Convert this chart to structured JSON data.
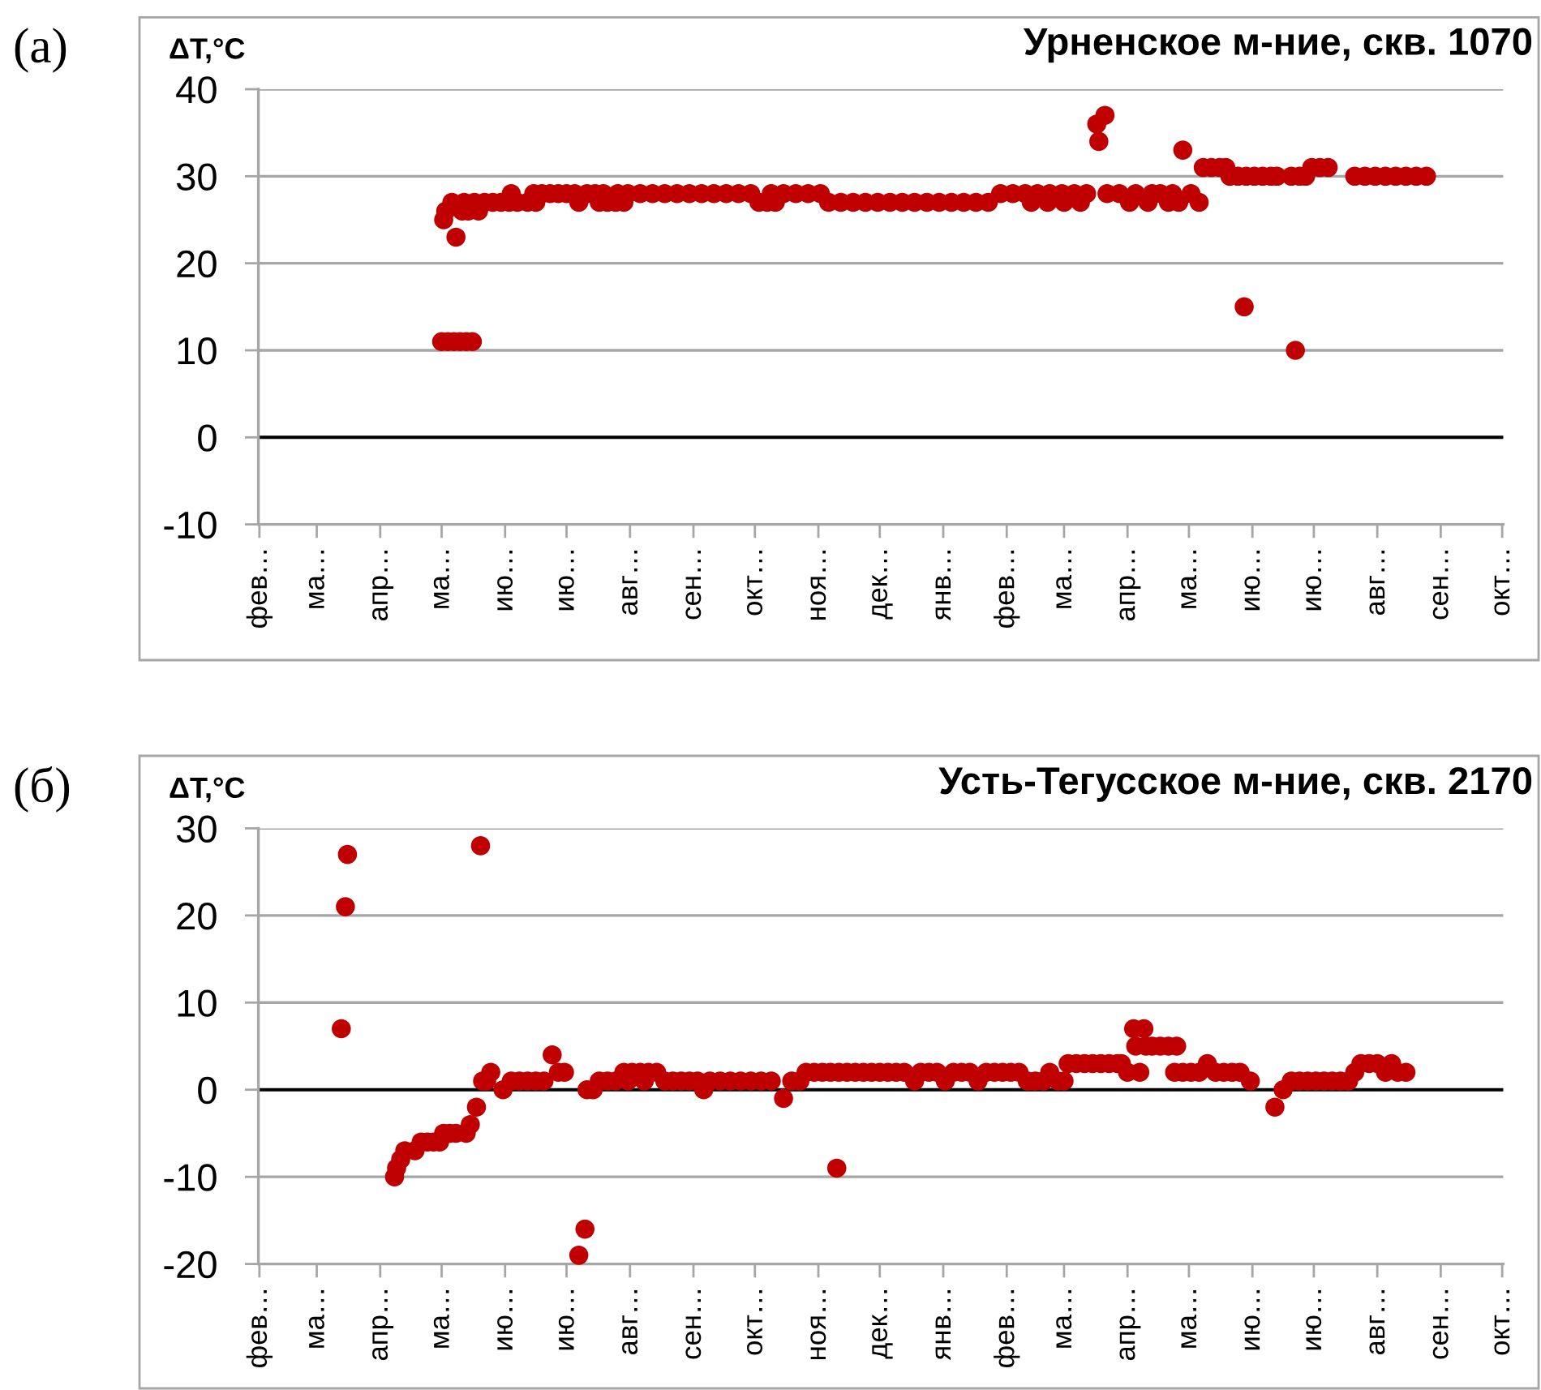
{
  "chart_data": [
    {
      "type": "scatter",
      "title": "Урненское м-ние, скв. 1070",
      "ylabel": "ΔT,°C",
      "annotations": [
        "(а)"
      ],
      "color": "#c00000",
      "marker": "circle",
      "grid": "y",
      "ref_lines": [
        {
          "axis": "y",
          "value": 0,
          "color": "#000000"
        }
      ],
      "ylim": [
        -10,
        40
      ],
      "yticks": [
        -10,
        0,
        10,
        20,
        30,
        40
      ],
      "categories": [
        "фев…",
        null,
        null,
        null,
        null,
        null,
        null,
        null,
        null,
        null,
        null,
        null,
        null,
        null,
        null,
        null,
        null,
        null,
        null,
        null,
        null,
        null,
        null,
        null,
        null,
        null,
        null,
        null,
        "ма…",
        null,
        null,
        null,
        null,
        null,
        null,
        null,
        null,
        null,
        null,
        null,
        null,
        null,
        null,
        null,
        null,
        null,
        null,
        null,
        null,
        null,
        null,
        null,
        null,
        null,
        null,
        null,
        null,
        null,
        null,
        "апр…",
        null,
        null,
        null,
        null,
        null,
        null,
        null,
        null,
        null,
        null,
        null,
        null,
        null,
        null,
        null,
        null,
        null,
        null,
        null,
        null,
        null,
        null,
        null,
        null,
        null,
        null,
        null,
        null,
        null,
        "ма…",
        null,
        null,
        null,
        null,
        null,
        null,
        null,
        null,
        null,
        null,
        null,
        null,
        null,
        null,
        null,
        null,
        null,
        null,
        null,
        null,
        null,
        null,
        null,
        null,
        null,
        null,
        null,
        null,
        null,
        null,
        "ию…",
        null,
        null,
        null,
        null,
        null,
        null,
        null,
        null,
        null,
        null,
        null,
        null,
        null,
        null,
        null,
        null,
        null,
        null,
        null,
        null,
        null,
        null,
        null,
        null,
        null,
        null,
        null,
        null,
        null,
        "ию…",
        null,
        null,
        null,
        null,
        null,
        null,
        null,
        null,
        null,
        null,
        null,
        null,
        null,
        null,
        null,
        null,
        null,
        null,
        null,
        null,
        null,
        null,
        null,
        null,
        null,
        null,
        null,
        null,
        null,
        null,
        "авг…",
        null,
        null,
        null,
        null,
        null,
        null,
        null,
        null,
        null,
        null,
        null,
        null,
        null,
        null,
        null,
        null,
        null,
        null,
        null,
        null,
        null,
        null,
        null,
        null,
        null,
        null,
        null,
        null,
        null,
        null,
        "сен…",
        null,
        null,
        null,
        null,
        null,
        null,
        null,
        null,
        null,
        null,
        null,
        null,
        null,
        null,
        null,
        null,
        null,
        null,
        null,
        null,
        null,
        null,
        null,
        null,
        null,
        null,
        null,
        null,
        null,
        "окт…",
        null,
        null,
        null,
        null,
        null,
        null,
        null,
        null,
        null,
        null,
        null,
        null,
        null,
        null,
        null,
        null,
        null,
        null,
        null,
        null,
        null,
        null,
        null,
        null,
        null,
        null,
        null,
        null,
        null,
        null,
        "ноя…",
        null,
        null,
        null,
        null,
        null,
        null,
        null,
        null,
        null,
        null,
        null,
        null,
        null,
        null,
        null,
        null,
        null,
        null,
        null,
        null,
        null,
        null,
        null,
        null,
        null,
        null,
        null,
        null,
        null,
        "дек…",
        null,
        null,
        null,
        null,
        null,
        null,
        null,
        null,
        null,
        null,
        null,
        null,
        null,
        null,
        null,
        null,
        null,
        null,
        null,
        null,
        null,
        null,
        null,
        null,
        null,
        null,
        null,
        null,
        null,
        null,
        "янв…",
        null,
        null,
        null,
        null,
        null,
        null,
        null,
        null,
        null,
        null,
        null,
        null,
        null,
        null,
        null,
        null,
        null,
        null,
        null,
        null,
        null,
        null,
        null,
        null,
        null,
        null,
        null,
        null,
        null,
        null,
        "фев…",
        null,
        null,
        null,
        null,
        null,
        null,
        null,
        null,
        null,
        null,
        null,
        null,
        null,
        null,
        null,
        null,
        null,
        null,
        null,
        null,
        null,
        null,
        null,
        null,
        null,
        null,
        null,
        "ма…",
        null,
        null,
        null,
        null,
        null,
        null,
        null,
        null,
        null,
        null,
        null,
        null,
        null,
        null,
        null,
        null,
        null,
        null,
        null,
        null,
        null,
        null,
        null,
        null,
        null,
        null,
        null,
        null,
        null,
        null,
        "апр…",
        null,
        null,
        null,
        null,
        null,
        null,
        null,
        null,
        null,
        null,
        null,
        null,
        null,
        null,
        null,
        null,
        null,
        null,
        null,
        null,
        null,
        null,
        null,
        null,
        null,
        null,
        null,
        null,
        null,
        "ма…",
        null,
        null,
        null,
        null,
        null,
        null,
        null,
        null,
        null,
        null,
        null,
        null,
        null,
        null,
        null,
        null,
        null,
        null,
        null,
        null,
        null,
        null,
        null,
        null,
        null,
        null,
        null,
        null,
        null,
        null,
        "ию…",
        null,
        null,
        null,
        null,
        null,
        null,
        null,
        null,
        null,
        null,
        null,
        null,
        null,
        null,
        null,
        null,
        null,
        null,
        null,
        null,
        null,
        null,
        null,
        null,
        null,
        null,
        null,
        null,
        null,
        "ию…",
        null,
        null,
        null,
        null,
        null,
        null,
        null,
        null,
        null,
        null,
        null,
        null,
        null,
        null,
        null,
        null,
        null,
        null,
        null,
        null,
        null,
        null,
        null,
        null,
        null,
        null,
        null,
        null,
        null,
        null,
        "авг…",
        null,
        null,
        null,
        null,
        null,
        null,
        null,
        null,
        null,
        null,
        null,
        null,
        null,
        null,
        null,
        null,
        null,
        null,
        null,
        null,
        null,
        null,
        null,
        null,
        null,
        null,
        null,
        null,
        null,
        null,
        "сен…",
        null,
        null,
        null,
        null,
        null,
        null,
        null,
        null,
        null,
        null,
        null,
        null,
        null,
        null,
        null,
        null,
        null,
        null,
        null,
        null,
        null,
        null,
        null,
        null,
        null,
        null,
        null,
        null,
        null,
        "окт…"
      ],
      "values": [
        null,
        null,
        null,
        null,
        null,
        null,
        null,
        null,
        null,
        null,
        null,
        null,
        null,
        null,
        null,
        null,
        null,
        null,
        null,
        null,
        null,
        null,
        null,
        null,
        null,
        null,
        null,
        null,
        null,
        null,
        null,
        null,
        null,
        null,
        null,
        null,
        null,
        null,
        null,
        null,
        null,
        null,
        null,
        null,
        null,
        null,
        null,
        null,
        null,
        null,
        null,
        null,
        null,
        null,
        null,
        null,
        null,
        null,
        null,
        null,
        null,
        null,
        null,
        null,
        null,
        null,
        null,
        null,
        null,
        null,
        null,
        null,
        null,
        null,
        null,
        null,
        null,
        null,
        null,
        null,
        null,
        null,
        null,
        null,
        null,
        null,
        null,
        null,
        null,
        11,
        25,
        26,
        11,
        null,
        27,
        11,
        23,
        null,
        11,
        26,
        27,
        11,
        26,
        null,
        11,
        27,
        null,
        26,
        null,
        null,
        27,
        null,
        null,
        null,
        27,
        null,
        null,
        null,
        27,
        null,
        null,
        null,
        27,
        28,
        null,
        null,
        27,
        null,
        null,
        null,
        null,
        27,
        null,
        null,
        28,
        27,
        null,
        null,
        28,
        null,
        null,
        null,
        28,
        null,
        null,
        null,
        28,
        null,
        null,
        null,
        28,
        null,
        null,
        null,
        28,
        null,
        27,
        null,
        null,
        null,
        28,
        null,
        null,
        null,
        28,
        null,
        27,
        null,
        28,
        null,
        27,
        null,
        null,
        null,
        27,
        28,
        null,
        null,
        27,
        null,
        28,
        null,
        null,
        null,
        null,
        null,
        28,
        null,
        null,
        null,
        null,
        null,
        28,
        null,
        null,
        null,
        null,
        null,
        28,
        null,
        null,
        null,
        null,
        null,
        28,
        null,
        null,
        null,
        null,
        null,
        28,
        null,
        null,
        null,
        null,
        null,
        28,
        null,
        null,
        null,
        null,
        null,
        28,
        null,
        null,
        null,
        null,
        null,
        28,
        null,
        null,
        null,
        null,
        null,
        28,
        null,
        null,
        null,
        null,
        null,
        28,
        null,
        null,
        null,
        27,
        null,
        null,
        null,
        27,
        null,
        28,
        null,
        27,
        null,
        null,
        null,
        28,
        null,
        null,
        null,
        null,
        null,
        28,
        null,
        null,
        null,
        null,
        null,
        28,
        null,
        null,
        null,
        null,
        null,
        28,
        null,
        null,
        null,
        27,
        null,
        null,
        null,
        null,
        null,
        27,
        null,
        null,
        null,
        null,
        null,
        27,
        null,
        null,
        null,
        null,
        null,
        27,
        null,
        null,
        null,
        null,
        null,
        27,
        null,
        null,
        null,
        null,
        null,
        27,
        null,
        null,
        null,
        null,
        null,
        27,
        null,
        null,
        null,
        null,
        null,
        27,
        null,
        null,
        null,
        null,
        null,
        27,
        null,
        null,
        null,
        null,
        null,
        27,
        null,
        null,
        null,
        null,
        null,
        27,
        null,
        null,
        null,
        null,
        null,
        27,
        null,
        null,
        null,
        null,
        null,
        27,
        null,
        null,
        null,
        null,
        null,
        27,
        null,
        null,
        null,
        null,
        null,
        28,
        null,
        null,
        null,
        null,
        null,
        28,
        null,
        null,
        null,
        null,
        null,
        28,
        null,
        null,
        27,
        null,
        null,
        28,
        null,
        null,
        null,
        null,
        27,
        28,
        null,
        null,
        null,
        null,
        null,
        28,
        27,
        null,
        null,
        null,
        null,
        28,
        null,
        null,
        27,
        null,
        null,
        28,
        null,
        null,
        null,
        null,
        36,
        34,
        null,
        null,
        37,
        28,
        null,
        null,
        null,
        null,
        null,
        28,
        null,
        null,
        null,
        null,
        27,
        null,
        null,
        28,
        null,
        null,
        null,
        null,
        null,
        27,
        null,
        28,
        null,
        null,
        null,
        28,
        null,
        null,
        null,
        27,
        null,
        28,
        null,
        null,
        27,
        null,
        33,
        null,
        null,
        null,
        28,
        null,
        null,
        null,
        27,
        null,
        31,
        null,
        null,
        null,
        31,
        null,
        null,
        null,
        31,
        null,
        null,
        31,
        null,
        30,
        null,
        null,
        null,
        30,
        null,
        null,
        15,
        30,
        null,
        null,
        null,
        30,
        null,
        null,
        null,
        30,
        null,
        null,
        null,
        30,
        null,
        null,
        30,
        null,
        null,
        null,
        null,
        null,
        null,
        30,
        null,
        10,
        null,
        30,
        null,
        null,
        30,
        null,
        null,
        31,
        null,
        null,
        null,
        31,
        null,
        null,
        null,
        31,
        null,
        null,
        null,
        null,
        null,
        null,
        null,
        null,
        null,
        null,
        null,
        null,
        30,
        null,
        null,
        null,
        null,
        30,
        null,
        null,
        null,
        null,
        30,
        null,
        null,
        null,
        null,
        30,
        null,
        null,
        null,
        null,
        30,
        null,
        null,
        null,
        null,
        30,
        null,
        null,
        null,
        null,
        30,
        null,
        null,
        null,
        null,
        30,
        null,
        null,
        null,
        null,
        null,
        null,
        null,
        null,
        null,
        null,
        null,
        null,
        null,
        null,
        null,
        null,
        null,
        null,
        null,
        null,
        null,
        null,
        null,
        null,
        null,
        null,
        null,
        null,
        null,
        null,
        null,
        null,
        null,
        null,
        null,
        null,
        null
      ]
    },
    {
      "type": "scatter",
      "title": "Усть-Тегусское м-ние, скв. 2170",
      "ylabel": "ΔT,°C",
      "annotations": [
        "(б)"
      ],
      "color": "#c00000",
      "marker": "circle",
      "grid": "y",
      "ref_lines": [
        {
          "axis": "y",
          "value": 0,
          "color": "#000000"
        }
      ],
      "ylim": [
        -20,
        30
      ],
      "yticks": [
        -20,
        -10,
        0,
        10,
        20,
        30
      ],
      "categories": [
        "фев…",
        null,
        null,
        null,
        null,
        null,
        null,
        null,
        null,
        null,
        null,
        null,
        null,
        null,
        null,
        null,
        null,
        null,
        null,
        null,
        null,
        null,
        null,
        null,
        null,
        null,
        null,
        null,
        "ма…",
        null,
        null,
        null,
        null,
        null,
        null,
        null,
        null,
        null,
        null,
        null,
        null,
        null,
        null,
        null,
        null,
        null,
        null,
        null,
        null,
        null,
        null,
        null,
        null,
        null,
        null,
        null,
        null,
        null,
        null,
        "апр…",
        null,
        null,
        null,
        null,
        null,
        null,
        null,
        null,
        null,
        null,
        null,
        null,
        null,
        null,
        null,
        null,
        null,
        null,
        null,
        null,
        null,
        null,
        null,
        null,
        null,
        null,
        null,
        null,
        null,
        "ма…",
        null,
        null,
        null,
        null,
        null,
        null,
        null,
        null,
        null,
        null,
        null,
        null,
        null,
        null,
        null,
        null,
        null,
        null,
        null,
        null,
        null,
        null,
        null,
        null,
        null,
        null,
        null,
        null,
        null,
        null,
        "ию…",
        null,
        null,
        null,
        null,
        null,
        null,
        null,
        null,
        null,
        null,
        null,
        null,
        null,
        null,
        null,
        null,
        null,
        null,
        null,
        null,
        null,
        null,
        null,
        null,
        null,
        null,
        null,
        null,
        null,
        "ию…",
        null,
        null,
        null,
        null,
        null,
        null,
        null,
        null,
        null,
        null,
        null,
        null,
        null,
        null,
        null,
        null,
        null,
        null,
        null,
        null,
        null,
        null,
        null,
        null,
        null,
        null,
        null,
        null,
        null,
        null,
        "авг…",
        null,
        null,
        null,
        null,
        null,
        null,
        null,
        null,
        null,
        null,
        null,
        null,
        null,
        null,
        null,
        null,
        null,
        null,
        null,
        null,
        null,
        null,
        null,
        null,
        null,
        null,
        null,
        null,
        null,
        null,
        "сен…",
        null,
        null,
        null,
        null,
        null,
        null,
        null,
        null,
        null,
        null,
        null,
        null,
        null,
        null,
        null,
        null,
        null,
        null,
        null,
        null,
        null,
        null,
        null,
        null,
        null,
        null,
        null,
        null,
        null,
        "окт…",
        null,
        null,
        null,
        null,
        null,
        null,
        null,
        null,
        null,
        null,
        null,
        null,
        null,
        null,
        null,
        null,
        null,
        null,
        null,
        null,
        null,
        null,
        null,
        null,
        null,
        null,
        null,
        null,
        null,
        null,
        "ноя…",
        null,
        null,
        null,
        null,
        null,
        null,
        null,
        null,
        null,
        null,
        null,
        null,
        null,
        null,
        null,
        null,
        null,
        null,
        null,
        null,
        null,
        null,
        null,
        null,
        null,
        null,
        null,
        null,
        null,
        "дек…",
        null,
        null,
        null,
        null,
        null,
        null,
        null,
        null,
        null,
        null,
        null,
        null,
        null,
        null,
        null,
        null,
        null,
        null,
        null,
        null,
        null,
        null,
        null,
        null,
        null,
        null,
        null,
        null,
        null,
        null,
        "янв…",
        null,
        null,
        null,
        null,
        null,
        null,
        null,
        null,
        null,
        null,
        null,
        null,
        null,
        null,
        null,
        null,
        null,
        null,
        null,
        null,
        null,
        null,
        null,
        null,
        null,
        null,
        null,
        null,
        null,
        null,
        "фев…",
        null,
        null,
        null,
        null,
        null,
        null,
        null,
        null,
        null,
        null,
        null,
        null,
        null,
        null,
        null,
        null,
        null,
        null,
        null,
        null,
        null,
        null,
        null,
        null,
        null,
        null,
        null,
        "ма…",
        null,
        null,
        null,
        null,
        null,
        null,
        null,
        null,
        null,
        null,
        null,
        null,
        null,
        null,
        null,
        null,
        null,
        null,
        null,
        null,
        null,
        null,
        null,
        null,
        null,
        null,
        null,
        null,
        null,
        null,
        "апр…",
        null,
        null,
        null,
        null,
        null,
        null,
        null,
        null,
        null,
        null,
        null,
        null,
        null,
        null,
        null,
        null,
        null,
        null,
        null,
        null,
        null,
        null,
        null,
        null,
        null,
        null,
        null,
        null,
        null,
        "ма…",
        null,
        null,
        null,
        null,
        null,
        null,
        null,
        null,
        null,
        null,
        null,
        null,
        null,
        null,
        null,
        null,
        null,
        null,
        null,
        null,
        null,
        null,
        null,
        null,
        null,
        null,
        null,
        null,
        null,
        null,
        "ию…",
        null,
        null,
        null,
        null,
        null,
        null,
        null,
        null,
        null,
        null,
        null,
        null,
        null,
        null,
        null,
        null,
        null,
        null,
        null,
        null,
        null,
        null,
        null,
        null,
        null,
        null,
        null,
        null,
        null,
        "ию…",
        null,
        null,
        null,
        null,
        null,
        null,
        null,
        null,
        null,
        null,
        null,
        null,
        null,
        null,
        null,
        null,
        null,
        null,
        null,
        null,
        null,
        null,
        null,
        null,
        null,
        null,
        null,
        null,
        null,
        null,
        "авг…",
        null,
        null,
        null,
        null,
        null,
        null,
        null,
        null,
        null,
        null,
        null,
        null,
        null,
        null,
        null,
        null,
        null,
        null,
        null,
        null,
        null,
        null,
        null,
        null,
        null,
        null,
        null,
        null,
        null,
        null,
        "сен…",
        null,
        null,
        null,
        null,
        null,
        null,
        null,
        null,
        null,
        null,
        null,
        null,
        null,
        null,
        null,
        null,
        null,
        null,
        null,
        null,
        null,
        null,
        null,
        null,
        null,
        null,
        null,
        null,
        null,
        "окт…"
      ],
      "values": [
        null,
        null,
        null,
        null,
        null,
        null,
        null,
        null,
        null,
        null,
        null,
        null,
        null,
        null,
        null,
        null,
        null,
        null,
        null,
        null,
        null,
        null,
        null,
        null,
        null,
        null,
        null,
        null,
        null,
        null,
        null,
        null,
        null,
        null,
        null,
        null,
        null,
        null,
        null,
        null,
        7,
        null,
        21,
        27,
        null,
        null,
        null,
        null,
        null,
        null,
        null,
        null,
        null,
        null,
        null,
        null,
        null,
        null,
        null,
        null,
        null,
        null,
        null,
        null,
        null,
        null,
        -10,
        -9,
        null,
        -8,
        null,
        -7,
        null,
        null,
        null,
        null,
        -7,
        null,
        null,
        -6,
        null,
        null,
        -6,
        null,
        null,
        -6,
        null,
        null,
        -6,
        null,
        -5,
        null,
        null,
        -5,
        null,
        null,
        -5,
        null,
        null,
        null,
        null,
        -5,
        null,
        -4,
        null,
        null,
        -2,
        null,
        28,
        1,
        null,
        1,
        null,
        2,
        null,
        null,
        null,
        null,
        null,
        0,
        null,
        null,
        null,
        1,
        null,
        null,
        null,
        1,
        null,
        null,
        null,
        1,
        null,
        null,
        null,
        1,
        null,
        null,
        null,
        1,
        null,
        null,
        null,
        4,
        null,
        null,
        2,
        null,
        null,
        2,
        null,
        null,
        null,
        null,
        null,
        null,
        -19,
        null,
        null,
        -16,
        0,
        null,
        null,
        0,
        null,
        null,
        1,
        null,
        null,
        null,
        1,
        null,
        null,
        null,
        1,
        null,
        null,
        null,
        2,
        null,
        1,
        null,
        2,
        null,
        null,
        null,
        2,
        null,
        1,
        null,
        2,
        null,
        null,
        null,
        2,
        null,
        null,
        null,
        1,
        null,
        null,
        null,
        1,
        null,
        null,
        null,
        1,
        null,
        null,
        null,
        1,
        null,
        null,
        null,
        1,
        null,
        null,
        0,
        null,
        null,
        1,
        null,
        null,
        null,
        null,
        1,
        null,
        null,
        null,
        null,
        1,
        null,
        null,
        null,
        null,
        1,
        null,
        null,
        null,
        null,
        1,
        null,
        null,
        null,
        null,
        1,
        null,
        null,
        null,
        null,
        1,
        null,
        null,
        null,
        null,
        null,
        -1,
        null,
        null,
        null,
        1,
        null,
        null,
        null,
        1,
        null,
        null,
        2,
        null,
        null,
        null,
        2,
        null,
        null,
        null,
        2,
        null,
        null,
        null,
        2,
        null,
        null,
        -9,
        2,
        null,
        null,
        null,
        2,
        null,
        null,
        null,
        2,
        null,
        null,
        null,
        2,
        null,
        null,
        null,
        2,
        null,
        null,
        null,
        2,
        null,
        null,
        null,
        2,
        null,
        null,
        null,
        2,
        null,
        null,
        null,
        2,
        null,
        null,
        null,
        null,
        1,
        null,
        null,
        2,
        null,
        null,
        null,
        2,
        null,
        null,
        null,
        2,
        null,
        null,
        null,
        1,
        null,
        null,
        null,
        2,
        null,
        null,
        null,
        2,
        null,
        null,
        null,
        2,
        null,
        null,
        null,
        1,
        null,
        null,
        null,
        2,
        null,
        null,
        null,
        2,
        null,
        null,
        null,
        2,
        null,
        null,
        null,
        2,
        null,
        null,
        null,
        2,
        null,
        null,
        null,
        1,
        null,
        null,
        null,
        1,
        null,
        null,
        null,
        1,
        null,
        null,
        2,
        null,
        null,
        null,
        1,
        null,
        null,
        1,
        null,
        3,
        null,
        null,
        null,
        3,
        null,
        null,
        null,
        3,
        null,
        null,
        null,
        3,
        null,
        null,
        null,
        3,
        null,
        null,
        null,
        3,
        null,
        null,
        null,
        3,
        null,
        3,
        null,
        null,
        2,
        null,
        null,
        7,
        5,
        null,
        2,
        null,
        7,
        5,
        null,
        null,
        5,
        null,
        null,
        null,
        5,
        null,
        null,
        null,
        5,
        null,
        null,
        2,
        5,
        null,
        null,
        2,
        null,
        null,
        null,
        2,
        null,
        null,
        null,
        2,
        null,
        null,
        null,
        3,
        null,
        null,
        null,
        2,
        null,
        null,
        null,
        2,
        null,
        null,
        null,
        2,
        null,
        null,
        null,
        2,
        null,
        null,
        null,
        null,
        1,
        null,
        null,
        null,
        null,
        null,
        null,
        null,
        null,
        null,
        null,
        null,
        -2,
        null,
        null,
        null,
        0,
        null,
        null,
        null,
        1,
        null,
        null,
        null,
        1,
        null,
        null,
        null,
        1,
        null,
        null,
        null,
        1,
        null,
        null,
        null,
        1,
        null,
        null,
        null,
        1,
        null,
        null,
        null,
        1,
        null,
        null,
        null,
        1,
        null,
        null,
        2,
        null,
        null,
        3,
        null,
        null,
        null,
        3,
        null,
        null,
        null,
        3,
        null,
        null,
        null,
        2,
        null,
        null,
        3,
        null,
        null,
        2,
        null,
        null,
        null,
        2,
        null,
        null,
        null,
        null,
        null,
        null,
        null,
        null,
        null,
        null,
        null,
        null,
        null,
        null,
        null,
        null,
        null,
        null,
        null,
        null,
        null,
        null,
        null,
        null,
        null,
        null,
        null,
        null,
        null,
        null,
        null,
        null,
        null,
        null,
        null,
        null,
        null,
        null,
        null,
        null,
        null,
        null,
        null,
        null,
        null,
        null,
        null
      ]
    }
  ]
}
